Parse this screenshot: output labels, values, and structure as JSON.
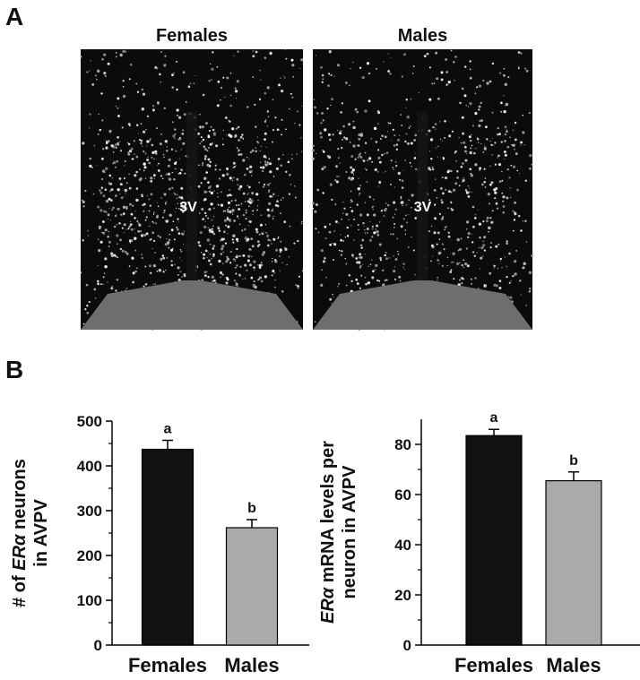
{
  "panel_a": {
    "label": "A",
    "images": [
      {
        "title": "Females",
        "annotation": "3V"
      },
      {
        "title": "Males",
        "annotation": "3V"
      }
    ]
  },
  "panel_b": {
    "label": "B"
  },
  "chart_data": [
    {
      "type": "bar",
      "ylabel": [
        [
          {
            "text": "# of "
          },
          {
            "text": "ERα",
            "italic": true
          },
          {
            "text": " neurons"
          }
        ],
        [
          {
            "text": "in AVPV"
          }
        ]
      ],
      "categories": [
        "Females",
        "Males"
      ],
      "values": [
        437,
        262
      ],
      "errors": [
        20,
        18
      ],
      "colors": [
        "#111111",
        "#aaaaaa"
      ],
      "annotations": [
        "a",
        "b"
      ],
      "ylim": [
        0,
        500
      ],
      "yticks": [
        0,
        100,
        200,
        300,
        400,
        500
      ],
      "minor_yticks": [
        50,
        150,
        250,
        350,
        450
      ]
    },
    {
      "type": "bar",
      "ylabel": [
        [
          {
            "text": "ERα",
            "italic": true
          },
          {
            "text": " mRNA levels per"
          }
        ],
        [
          {
            "text": "neuron in AVPV"
          }
        ]
      ],
      "categories": [
        "Females",
        "Males"
      ],
      "values": [
        83.5,
        65.5
      ],
      "errors": [
        2.5,
        3.5
      ],
      "colors": [
        "#111111",
        "#aaaaaa"
      ],
      "annotations": [
        "a",
        "b"
      ],
      "ylim": [
        0,
        90
      ],
      "yticks": [
        0,
        20,
        40,
        60,
        80
      ],
      "minor_yticks": [
        10,
        30,
        50,
        70
      ]
    }
  ]
}
